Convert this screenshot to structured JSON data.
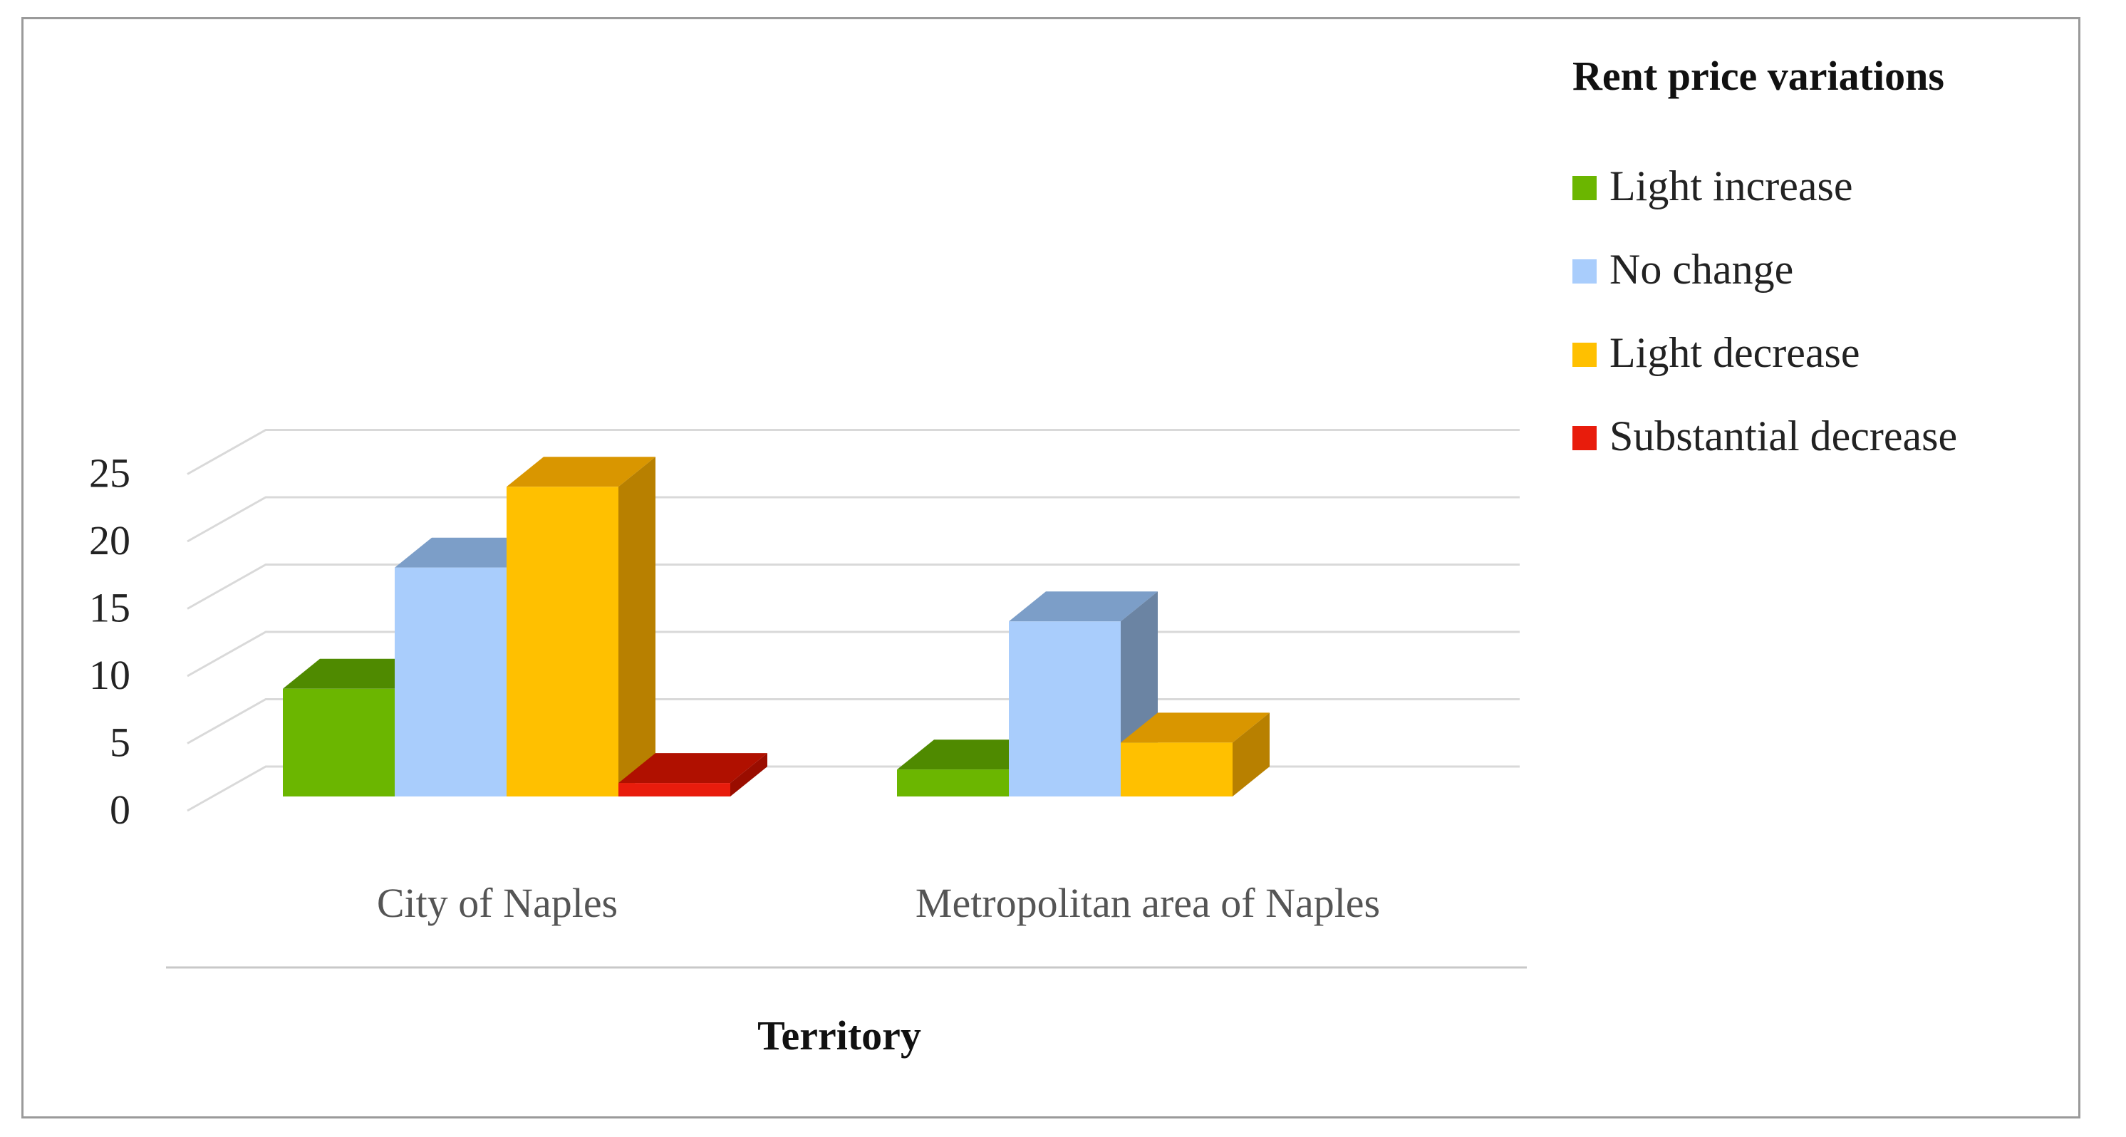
{
  "chart_data": {
    "type": "bar",
    "style": "3d-clustered-column",
    "categories": [
      "City of Naples",
      "Metropolitan area of Naples"
    ],
    "series": [
      {
        "name": "Light increase",
        "values": [
          8,
          2
        ],
        "color": "#6bb600",
        "top_color": "#4f8a00",
        "side_color": "#4f8a00"
      },
      {
        "name": "No change",
        "values": [
          17,
          13
        ],
        "color": "#a9cdfc",
        "top_color": "#7c9ec8",
        "side_color": "#6b84a3"
      },
      {
        "name": "Light decrease",
        "values": [
          23,
          4
        ],
        "color": "#ffc000",
        "top_color": "#d99600",
        "side_color": "#b88000"
      },
      {
        "name": "Substantial decrease",
        "values": [
          1,
          0
        ],
        "color": "#e81c0c",
        "top_color": "#b01000",
        "side_color": "#9a0d00"
      }
    ],
    "xlabel": "Territory",
    "ylabel": "",
    "ylim": [
      0,
      25
    ],
    "yticks": [
      0,
      5,
      10,
      15,
      20,
      25
    ],
    "grid": true,
    "legend": {
      "title": "Rent price variations",
      "position": "right"
    }
  }
}
